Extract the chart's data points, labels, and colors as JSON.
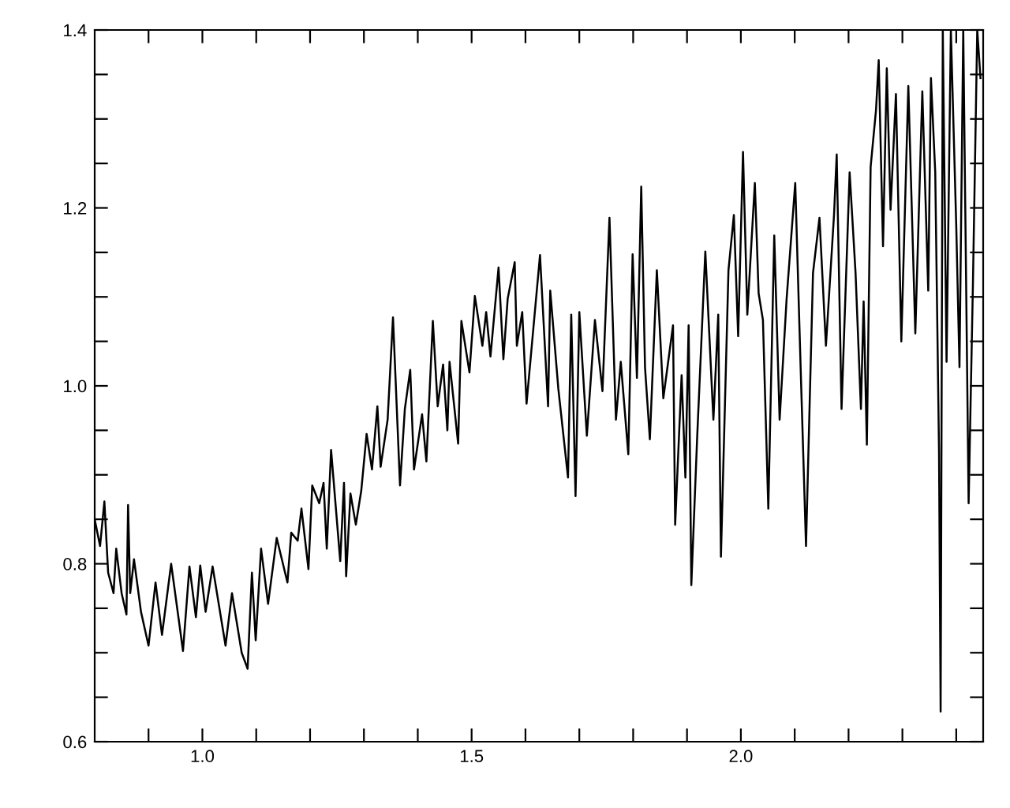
{
  "chart_data": {
    "type": "line",
    "marker": "none",
    "line_style": "solid",
    "grid": false,
    "x": [
      0.8,
      0.81,
      0.818,
      0.825,
      0.835,
      0.84,
      0.85,
      0.859,
      0.862,
      0.866,
      0.873,
      0.886,
      0.9,
      0.913,
      0.925,
      0.942,
      0.964,
      0.976,
      0.988,
      0.996,
      1.006,
      1.019,
      1.043,
      1.055,
      1.073,
      1.084,
      1.092,
      1.099,
      1.109,
      1.122,
      1.138,
      1.158,
      1.165,
      1.177,
      1.184,
      1.197,
      1.204,
      1.217,
      1.225,
      1.231,
      1.239,
      1.256,
      1.263,
      1.267,
      1.275,
      1.285,
      1.295,
      1.305,
      1.315,
      1.325,
      1.331,
      1.344,
      1.354,
      1.367,
      1.376,
      1.386,
      1.393,
      1.408,
      1.416,
      1.428,
      1.437,
      1.447,
      1.455,
      1.459,
      1.475,
      1.481,
      1.496,
      1.506,
      1.52,
      1.527,
      1.535,
      1.55,
      1.559,
      1.567,
      1.58,
      1.584,
      1.594,
      1.602,
      1.627,
      1.642,
      1.646,
      1.661,
      1.679,
      1.685,
      1.693,
      1.7,
      1.714,
      1.729,
      1.743,
      1.756,
      1.768,
      1.777,
      1.791,
      1.799,
      1.807,
      1.815,
      1.822,
      1.831,
      1.844,
      1.856,
      1.874,
      1.878,
      1.89,
      1.897,
      1.903,
      1.908,
      1.919,
      1.934,
      1.949,
      1.958,
      1.963,
      1.977,
      1.987,
      1.995,
      2.004,
      2.012,
      2.026,
      2.033,
      2.041,
      2.051,
      2.062,
      2.072,
      2.085,
      2.101,
      2.111,
      2.121,
      2.134,
      2.146,
      2.158,
      2.173,
      2.178,
      2.187,
      2.202,
      2.213,
      2.223,
      2.228,
      2.234,
      2.241,
      2.251,
      2.256,
      2.264,
      2.271,
      2.278,
      2.288,
      2.298,
      2.311,
      2.324,
      2.337,
      2.348,
      2.353,
      2.361,
      2.368,
      2.371,
      2.375,
      2.382,
      2.39,
      2.4,
      2.406,
      2.413,
      2.423,
      2.431,
      2.439,
      2.445
    ],
    "series": [
      {
        "color": "#000000",
        "values": [
          0.85,
          0.82,
          0.87,
          0.79,
          0.767,
          0.817,
          0.767,
          0.743,
          0.866,
          0.767,
          0.805,
          0.746,
          0.708,
          0.779,
          0.72,
          0.8,
          0.702,
          0.797,
          0.74,
          0.798,
          0.746,
          0.797,
          0.708,
          0.767,
          0.7,
          0.682,
          0.79,
          0.714,
          0.817,
          0.755,
          0.829,
          0.779,
          0.835,
          0.826,
          0.862,
          0.794,
          0.888,
          0.868,
          0.891,
          0.817,
          0.928,
          0.803,
          0.891,
          0.786,
          0.879,
          0.844,
          0.882,
          0.946,
          0.906,
          0.977,
          0.909,
          0.962,
          1.077,
          0.888,
          0.974,
          1.018,
          0.906,
          0.968,
          0.915,
          1.073,
          0.977,
          1.024,
          0.95,
          1.027,
          0.935,
          1.073,
          1.015,
          1.101,
          1.045,
          1.083,
          1.033,
          1.133,
          1.03,
          1.098,
          1.139,
          1.045,
          1.083,
          0.98,
          1.147,
          0.977,
          1.107,
          0.997,
          0.897,
          1.08,
          0.876,
          1.083,
          0.944,
          1.074,
          0.994,
          1.189,
          0.962,
          1.027,
          0.923,
          1.148,
          1.009,
          1.224,
          1.021,
          0.94,
          1.13,
          0.986,
          1.068,
          0.844,
          1.012,
          0.897,
          1.068,
          0.776,
          0.944,
          1.151,
          0.962,
          1.08,
          0.808,
          1.13,
          1.192,
          1.056,
          1.263,
          1.08,
          1.228,
          1.104,
          1.074,
          0.862,
          1.169,
          0.962,
          1.098,
          1.228,
          1.021,
          0.82,
          1.127,
          1.189,
          1.045,
          1.192,
          1.26,
          0.974,
          1.24,
          1.127,
          0.974,
          1.095,
          0.934,
          1.246,
          1.31,
          1.366,
          1.157,
          1.357,
          1.198,
          1.328,
          1.05,
          1.337,
          1.059,
          1.331,
          1.107,
          1.346,
          1.24,
          0.927,
          0.634,
          1.4,
          1.027,
          1.4,
          1.18,
          1.021,
          1.4,
          0.868,
          1.115,
          1.4,
          1.346
        ]
      }
    ],
    "xlim": [
      0.8,
      2.45
    ],
    "ylim": [
      0.6,
      1.4
    ],
    "xticks": [
      {
        "value": 0.9,
        "label": null
      },
      {
        "value": 1.0,
        "label": "1.0"
      },
      {
        "value": 1.1,
        "label": null
      },
      {
        "value": 1.2,
        "label": null
      },
      {
        "value": 1.3,
        "label": null
      },
      {
        "value": 1.4,
        "label": null
      },
      1.5,
      {
        "value": 1.6,
        "label": null
      },
      {
        "value": 1.7,
        "label": null
      },
      {
        "value": 1.8,
        "label": null
      },
      {
        "value": 1.9,
        "label": null
      },
      {
        "value": 2.0,
        "label": "2.0"
      },
      {
        "value": 2.1,
        "label": null
      },
      {
        "value": 2.2,
        "label": null
      },
      {
        "value": 2.3,
        "label": null
      },
      {
        "value": 2.4,
        "label": null
      }
    ],
    "yticks": [
      0.6,
      {
        "value": 0.65,
        "label": null
      },
      {
        "value": 0.7,
        "label": null
      },
      {
        "value": 0.75,
        "label": null
      },
      0.8,
      {
        "value": 0.85,
        "label": null
      },
      {
        "value": 0.9,
        "label": null
      },
      {
        "value": 0.95,
        "label": null
      },
      {
        "value": 1.0,
        "label": "1.0"
      },
      {
        "value": 1.05,
        "label": null
      },
      {
        "value": 1.1,
        "label": null
      },
      {
        "value": 1.15,
        "label": null
      },
      1.2,
      {
        "value": 1.25,
        "label": null
      },
      {
        "value": 1.3,
        "label": null
      },
      {
        "value": 1.35,
        "label": null
      },
      1.4
    ]
  }
}
